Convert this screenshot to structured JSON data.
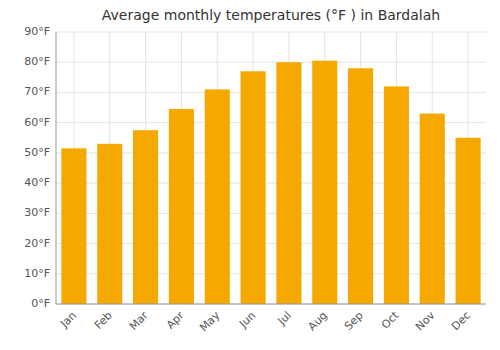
{
  "chart_data": {
    "type": "bar",
    "title": "Average monthly temperatures (°F ) in Bardalah",
    "categories": [
      "Jan",
      "Feb",
      "Mar",
      "Apr",
      "May",
      "Jun",
      "Jul",
      "Aug",
      "Sep",
      "Oct",
      "Nov",
      "Dec"
    ],
    "values": [
      51.5,
      53,
      57.5,
      64.5,
      71,
      77,
      80,
      80.5,
      78,
      72,
      63,
      55
    ],
    "color": "#F5A800",
    "ylim": [
      0,
      90
    ],
    "yticks": [
      {
        "value": 0,
        "label": "0°F"
      },
      {
        "value": 10,
        "label": "10°F"
      },
      {
        "value": 20,
        "label": "20°F"
      },
      {
        "value": 30,
        "label": "30°F"
      },
      {
        "value": 40,
        "label": "40°F"
      },
      {
        "value": 50,
        "label": "50°F"
      },
      {
        "value": 60,
        "label": "60°F"
      },
      {
        "value": 70,
        "label": "70°F"
      },
      {
        "value": 80,
        "label": "80°F"
      },
      {
        "value": 90,
        "label": "90°F"
      }
    ],
    "grid": true
  }
}
